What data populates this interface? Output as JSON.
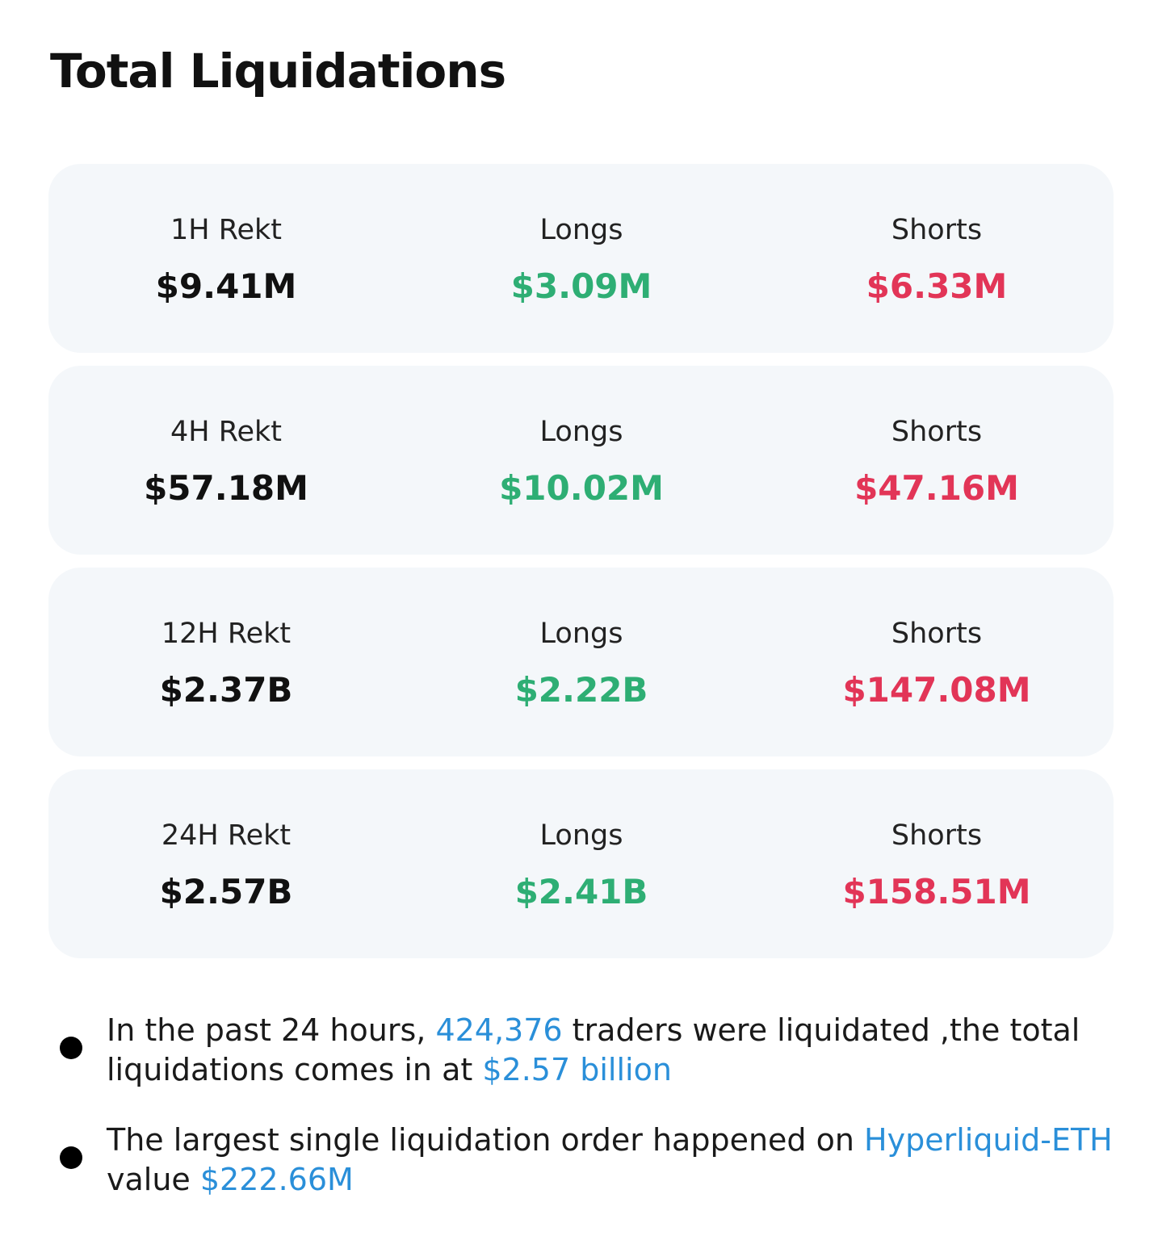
{
  "title": "Total Liquidations",
  "colors": {
    "long": "#2eae74",
    "short": "#e23557",
    "highlight": "#2a8fd9",
    "card_bg": "#f4f7fa"
  },
  "rows": [
    {
      "rekt_label": "1H Rekt",
      "rekt_value": "$9.41M",
      "longs_label": "Longs",
      "longs_value": "$3.09M",
      "shorts_label": "Shorts",
      "shorts_value": "$6.33M"
    },
    {
      "rekt_label": "4H Rekt",
      "rekt_value": "$57.18M",
      "longs_label": "Longs",
      "longs_value": "$10.02M",
      "shorts_label": "Shorts",
      "shorts_value": "$47.16M"
    },
    {
      "rekt_label": "12H Rekt",
      "rekt_value": "$2.37B",
      "longs_label": "Longs",
      "longs_value": "$2.22B",
      "shorts_label": "Shorts",
      "shorts_value": "$147.08M"
    },
    {
      "rekt_label": "24H Rekt",
      "rekt_value": "$2.57B",
      "longs_label": "Longs",
      "longs_value": "$2.41B",
      "shorts_label": "Shorts",
      "shorts_value": "$158.51M"
    }
  ],
  "summary": {
    "b1_prefix": "In the past 24 hours, ",
    "b1_traders": "424,376",
    "b1_middle": " traders were liquidated ,the total liquidations comes in at ",
    "b1_total": "$2.57 billion",
    "b2_prefix": "The largest single liquidation order happened on ",
    "b2_pair": "Hyperliquid-ETH",
    "b2_middle": " value ",
    "b2_value": "$222.66M"
  }
}
